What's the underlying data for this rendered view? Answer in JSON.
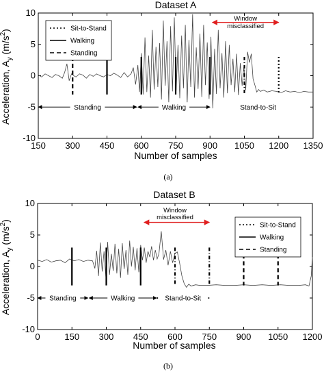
{
  "chart_data": [
    {
      "type": "line",
      "title": "Dataset A",
      "xlabel": "Number of samples",
      "ylabel": "Acceleration, A",
      "ylabel_sub": "y",
      "ylabel_unit": " (m/s",
      "ylabel_exp": "2",
      "ylabel_close": ")",
      "xlim": [
        150,
        1350
      ],
      "ylim": [
        -10,
        10
      ],
      "xticks": [
        150,
        300,
        450,
        600,
        750,
        900,
        1050,
        1200,
        1350
      ],
      "yticks": [
        -10,
        -5,
        0,
        5,
        10
      ],
      "grid": false,
      "legend_position": "top-left",
      "legend": [
        {
          "label": "Sit-to-Stand",
          "style": "dotted"
        },
        {
          "label": "Walking",
          "style": "solid"
        },
        {
          "label": "Standing",
          "style": "dashed"
        }
      ],
      "markers": [
        {
          "x": 300,
          "style": "dashed"
        },
        {
          "x": 450,
          "style": "solid"
        },
        {
          "x": 600,
          "style": "solid"
        },
        {
          "x": 750,
          "style": "solid"
        },
        {
          "x": 900,
          "style": "solid"
        },
        {
          "x": 1050,
          "style": "dashdot"
        },
        {
          "x": 1200,
          "style": "dotted"
        }
      ],
      "phase_arrows": [
        {
          "label": "Standing",
          "x1": 150,
          "x2": 580,
          "y": -5,
          "color": "#000000"
        },
        {
          "label": "Walking",
          "x1": 585,
          "x2": 900,
          "y": -5,
          "color": "#000000"
        },
        {
          "label": "Stand-to-Sit",
          "x1": 1020,
          "x2": 1200,
          "y": -5,
          "color": "#000000"
        },
        {
          "label": "",
          "x1": 910,
          "x2": 1200,
          "y": 8.5,
          "color": "#e02020"
        }
      ],
      "annotations": [
        {
          "text": "Window",
          "x": 1055,
          "y": 9.1
        },
        {
          "text": "misclassified",
          "x": 1055,
          "y": 7.9
        }
      ],
      "series": [
        {
          "x": [
            150,
            165,
            180,
            195,
            210,
            225,
            240,
            255,
            265,
            275,
            285,
            295,
            305,
            315,
            330,
            345,
            360,
            375,
            390,
            405,
            420,
            435,
            450,
            465,
            480,
            495,
            510,
            525,
            540,
            555,
            565,
            575,
            585,
            592,
            600,
            608,
            616,
            624,
            632,
            640,
            648,
            656,
            664,
            672,
            680,
            688,
            696,
            704,
            712,
            720,
            728,
            736,
            744,
            752,
            760,
            768,
            776,
            784,
            792,
            800,
            808,
            816,
            824,
            832,
            840,
            848,
            856,
            864,
            872,
            880,
            888,
            896,
            904,
            912,
            920,
            928,
            936,
            944,
            952,
            960,
            968,
            976,
            984,
            992,
            1000,
            1008,
            1016,
            1024,
            1032,
            1040,
            1048,
            1056,
            1064,
            1072,
            1080,
            1088,
            1096,
            1104,
            1112,
            1120,
            1135,
            1150,
            1170,
            1190,
            1210,
            1230,
            1250,
            1270,
            1290,
            1310,
            1330,
            1350
          ],
          "y": [
            0.1,
            -0.2,
            0.3,
            0.0,
            -0.3,
            0.2,
            0.0,
            -0.4,
            0.5,
            1.9,
            -0.8,
            0.3,
            0.0,
            -0.2,
            0.3,
            0.1,
            -0.4,
            0.2,
            -0.1,
            0.3,
            0.0,
            -0.2,
            0.2,
            0.0,
            0.4,
            0.1,
            -0.3,
            0.5,
            -0.2,
            0.3,
            1.3,
            -1.4,
            1.7,
            -2.6,
            3.6,
            -3.0,
            6.1,
            -2.6,
            3.2,
            -3.5,
            7.3,
            -2.2,
            4.6,
            -1.8,
            5.2,
            -3.8,
            8.8,
            -1.6,
            5.5,
            -4.3,
            7.9,
            -2.5,
            9.3,
            -2.4,
            4.9,
            -3.6,
            6.4,
            -2.0,
            8.1,
            -4.5,
            5.7,
            -1.8,
            9.8,
            -3.5,
            4.5,
            -2.1,
            6.7,
            -3.4,
            8.1,
            -1.5,
            5.3,
            -3.7,
            6.2,
            -5.2,
            4.3,
            -2.9,
            7.3,
            -2.0,
            3.6,
            -3.5,
            5.5,
            -2.8,
            4.9,
            -1.5,
            2.7,
            -2.6,
            3.5,
            -3.1,
            2.0,
            -1.6,
            1.4,
            -2.3,
            3.8,
            2.1,
            3.5,
            -0.5,
            -1.5,
            -2.6,
            -2.2,
            -2.5,
            -2.3,
            -2.6,
            -2.4,
            -2.5,
            -2.7,
            -2.4,
            -2.6,
            -2.5,
            -2.7,
            -2.5,
            -2.6,
            -2.6
          ]
        }
      ]
    },
    {
      "type": "line",
      "title": "Dataset B",
      "xlabel": "Number of samples",
      "ylabel": "Acceleration, A",
      "ylabel_sub": "y",
      "ylabel_unit": " (m/s",
      "ylabel_exp": "2",
      "ylabel_close": ")",
      "xlim": [
        0,
        1200
      ],
      "ylim": [
        -10,
        10
      ],
      "xticks": [
        0,
        150,
        300,
        450,
        600,
        750,
        900,
        1050,
        1200
      ],
      "yticks": [
        -10,
        -5,
        0,
        5,
        10
      ],
      "grid": false,
      "legend_position": "top-right",
      "legend": [
        {
          "label": "Sit-to-Stand",
          "style": "dotted"
        },
        {
          "label": "Walking",
          "style": "solid"
        },
        {
          "label": "Standing",
          "style": "dashed"
        }
      ],
      "markers": [
        {
          "x": 150,
          "style": "solid"
        },
        {
          "x": 300,
          "style": "solid"
        },
        {
          "x": 450,
          "style": "solid"
        },
        {
          "x": 600,
          "style": "dashdot"
        },
        {
          "x": 750,
          "style": "dashdot"
        },
        {
          "x": 900,
          "style": "dashed"
        },
        {
          "x": 1050,
          "style": "dashed"
        }
      ],
      "phase_arrows": [
        {
          "label": "Standing",
          "x1": 0,
          "x2": 220,
          "y": -5,
          "color": "#000000"
        },
        {
          "label": "Walking",
          "x1": 225,
          "x2": 520,
          "y": -5,
          "color": "#000000"
        },
        {
          "label": "Stand-to-Sit",
          "x1": 520,
          "x2": 750,
          "y": -5,
          "color": "#000000"
        },
        {
          "label": "",
          "x1": 465,
          "x2": 750,
          "y": 7.0,
          "color": "#e02020"
        }
      ],
      "annotations": [
        {
          "text": "Window",
          "x": 600,
          "y": 8.9
        },
        {
          "text": "misclassified",
          "x": 600,
          "y": 7.8
        }
      ],
      "series": [
        {
          "x": [
            0,
            20,
            40,
            60,
            80,
            100,
            120,
            140,
            160,
            180,
            200,
            220,
            240,
            250,
            258,
            266,
            274,
            282,
            290,
            298,
            306,
            314,
            322,
            330,
            338,
            346,
            354,
            362,
            370,
            378,
            386,
            394,
            402,
            410,
            418,
            426,
            434,
            442,
            450,
            458,
            466,
            474,
            482,
            490,
            498,
            506,
            514,
            522,
            530,
            540,
            550,
            560,
            570,
            580,
            590,
            600,
            610,
            620,
            630,
            640,
            650,
            660,
            670,
            690,
            710,
            740,
            780,
            820,
            860,
            900,
            940,
            980,
            1020,
            1060,
            1100,
            1140,
            1170,
            1185,
            1195,
            1200
          ],
          "y": [
            1.0,
            0.8,
            1.1,
            0.7,
            0.9,
            1.0,
            0.6,
            1.2,
            0.9,
            1.1,
            0.8,
            1.0,
            0.9,
            -0.3,
            2.5,
            -1.5,
            3.8,
            -0.8,
            2.4,
            -1.6,
            3.9,
            -1.3,
            2.0,
            -0.7,
            3.6,
            -1.1,
            2.8,
            -1.8,
            3.7,
            -0.4,
            2.6,
            -1.3,
            4.1,
            0.0,
            3.1,
            -0.6,
            2.9,
            -0.9,
            3.4,
            1.0,
            3.0,
            0.6,
            2.4,
            1.5,
            3.2,
            1.0,
            2.6,
            1.2,
            2.0,
            5.6,
            1.1,
            2.6,
            0.2,
            2.4,
            0.6,
            2.1,
            2.3,
            0.6,
            -1.5,
            -2.7,
            -3.3,
            -2.8,
            -3.1,
            -2.9,
            -3.0,
            -3.0,
            -2.9,
            -3.0,
            -3.0,
            -2.9,
            -3.0,
            -2.9,
            -3.0,
            -2.9,
            -3.0,
            -3.0,
            -2.9,
            -3.1,
            -1.5,
            1.5
          ]
        }
      ]
    }
  ],
  "captions": [
    "(a)",
    "(b)"
  ]
}
